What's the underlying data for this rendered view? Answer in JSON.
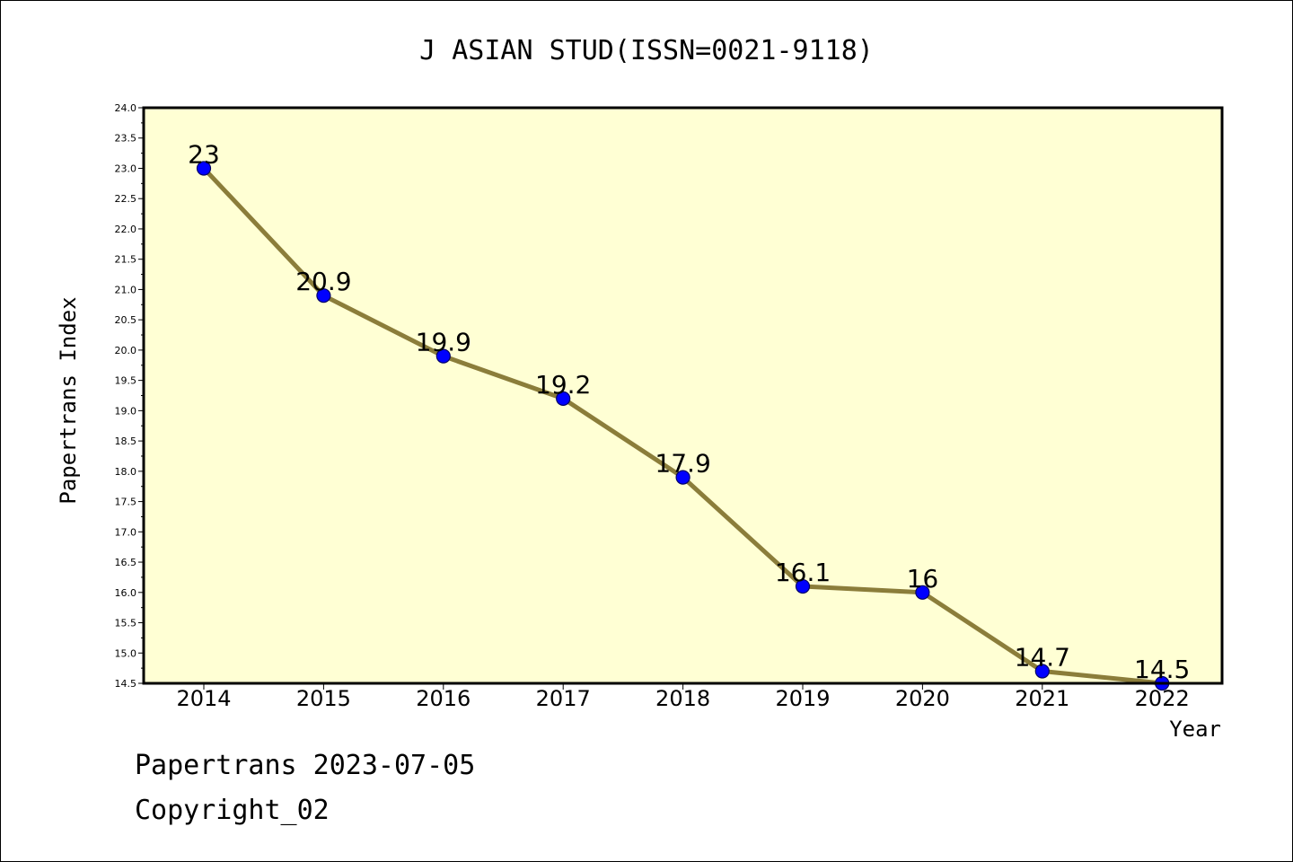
{
  "chart_data": {
    "type": "line",
    "title": "J ASIAN STUD(ISSN=0021-9118)",
    "xlabel": "Year",
    "ylabel": "Papertrans Index",
    "x": [
      "2014",
      "2015",
      "2016",
      "2017",
      "2018",
      "2019",
      "2020",
      "2021",
      "2022"
    ],
    "values": [
      23,
      20.9,
      19.9,
      19.2,
      17.9,
      16.1,
      16,
      14.7,
      14.5
    ],
    "data_labels": [
      "23",
      "20.9",
      "19.9",
      "19.2",
      "17.9",
      "16.1",
      "16",
      "14.7",
      "14.5"
    ],
    "ylim": [
      14.5,
      24.0
    ],
    "yticks": [
      "14.5",
      "15.0",
      "15.5",
      "16.0",
      "16.5",
      "17.0",
      "17.5",
      "18.0",
      "18.5",
      "19.0",
      "19.5",
      "20.0",
      "20.5",
      "21.0",
      "21.5",
      "22.0",
      "22.5",
      "23.0",
      "23.5",
      "24.0"
    ],
    "grid": false,
    "colors": {
      "plot_background": "#ffffd4",
      "line": "#8b7d3a",
      "marker": "#0000ff",
      "marker_edge": "#000066"
    }
  },
  "footer": {
    "line1": "Papertrans 2023-07-05",
    "line2": "Copyright_02"
  }
}
